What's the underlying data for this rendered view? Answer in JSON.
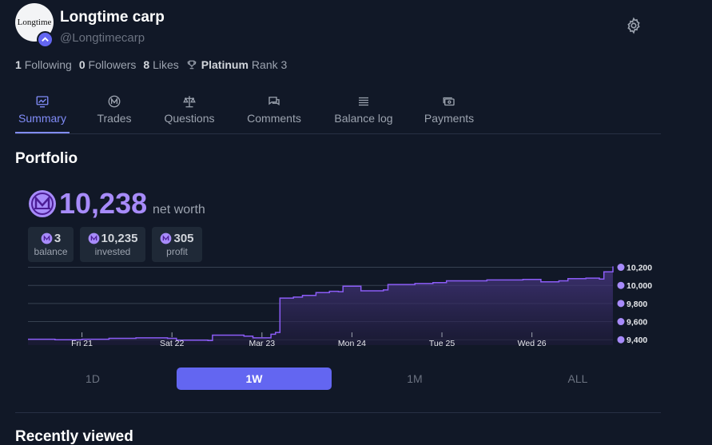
{
  "profile": {
    "avatar_text": "Longtime",
    "name": "Longtime carp",
    "handle": "@Longtimecarp"
  },
  "stats": {
    "following_count": "1",
    "following_label": "Following",
    "followers_count": "0",
    "followers_label": "Followers",
    "likes_count": "8",
    "likes_label": "Likes",
    "tier": "Platinum",
    "rank": "Rank 3"
  },
  "tabs": [
    {
      "label": "Summary",
      "icon": "chart-icon",
      "active": true
    },
    {
      "label": "Trades",
      "icon": "mana-icon",
      "active": false
    },
    {
      "label": "Questions",
      "icon": "scales-icon",
      "active": false
    },
    {
      "label": "Comments",
      "icon": "comment-icon",
      "active": false
    },
    {
      "label": "Balance log",
      "icon": "list-icon",
      "active": false
    },
    {
      "label": "Payments",
      "icon": "cash-icon",
      "active": false
    }
  ],
  "portfolio": {
    "title": "Portfolio",
    "net_worth": "10,238",
    "net_worth_label": "net worth",
    "balance": "3",
    "balance_label": "balance",
    "invested": "10,235",
    "invested_label": "invested",
    "profit": "305",
    "profit_label": "profit"
  },
  "colors": {
    "background": "#111827",
    "accent": "#6366f1",
    "mana": "#a78bfa",
    "line": "#8b5cf6",
    "muted": "#9ca3af"
  },
  "chart_data": {
    "type": "area",
    "x_tick_labels": [
      "Fri 21",
      "Sat 22",
      "Mar 23",
      "Mon 24",
      "Tue 25",
      "Wed 26"
    ],
    "y_tick_labels": [
      "10,200",
      "10,000",
      "9,800",
      "9,600",
      "9,400"
    ],
    "y_ticks": [
      10200,
      10000,
      9800,
      9600,
      9400
    ],
    "ylim": [
      9340,
      10240
    ],
    "x_days": [
      0,
      6.5
    ],
    "points": [
      [
        0.0,
        9405
      ],
      [
        0.3,
        9400
      ],
      [
        0.6,
        9405
      ],
      [
        0.9,
        9415
      ],
      [
        1.2,
        9420
      ],
      [
        1.55,
        9415
      ],
      [
        1.65,
        9395
      ],
      [
        2.0,
        9390
      ],
      [
        2.05,
        9450
      ],
      [
        2.4,
        9440
      ],
      [
        2.5,
        9420
      ],
      [
        2.7,
        9460
      ],
      [
        2.75,
        9480
      ],
      [
        2.8,
        9860
      ],
      [
        2.95,
        9870
      ],
      [
        3.05,
        9890
      ],
      [
        3.2,
        9920
      ],
      [
        3.35,
        9935
      ],
      [
        3.45,
        9930
      ],
      [
        3.5,
        9990
      ],
      [
        3.7,
        9940
      ],
      [
        3.95,
        9950
      ],
      [
        4.0,
        10010
      ],
      [
        4.3,
        10020
      ],
      [
        4.5,
        10030
      ],
      [
        4.65,
        10050
      ],
      [
        5.1,
        10060
      ],
      [
        5.5,
        10065
      ],
      [
        5.7,
        10040
      ],
      [
        5.9,
        10050
      ],
      [
        6.0,
        10075
      ],
      [
        6.2,
        10080
      ],
      [
        6.35,
        10070
      ],
      [
        6.4,
        10150
      ],
      [
        6.5,
        10210
      ]
    ]
  },
  "time_ranges": [
    {
      "label": "1D",
      "active": false
    },
    {
      "label": "1W",
      "active": true
    },
    {
      "label": "1M",
      "active": false
    },
    {
      "label": "ALL",
      "active": false
    }
  ],
  "recent": {
    "title": "Recently viewed"
  }
}
